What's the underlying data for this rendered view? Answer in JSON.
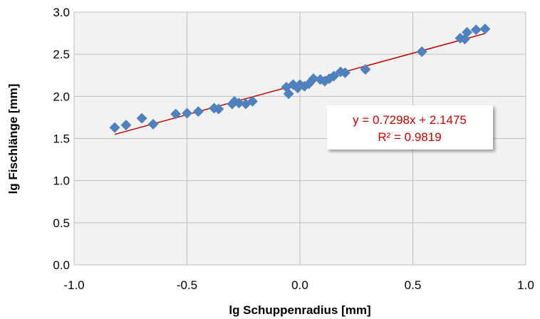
{
  "chart_data": {
    "type": "scatter",
    "title": "",
    "xlabel": "lg Schuppenradius [mm]",
    "ylabel": "lg Fischlänge [mm]",
    "xlim": [
      -1.0,
      1.0
    ],
    "ylim": [
      0.0,
      3.0
    ],
    "x_ticks": [
      "-1.0",
      "-0.5",
      "0.0",
      "0.5",
      "1.0"
    ],
    "y_ticks": [
      "0.0",
      "0.5",
      "1.0",
      "1.5",
      "2.0",
      "2.5",
      "3.0"
    ],
    "x_tick_values": [
      -1.0,
      -0.5,
      0.0,
      0.5,
      1.0
    ],
    "y_tick_values": [
      0.0,
      0.5,
      1.0,
      1.5,
      2.0,
      2.5,
      3.0
    ],
    "grid": true,
    "marker": "diamond",
    "colors": {
      "points": "#4f81bd",
      "trendline": "#c00000",
      "plot_background": "#f2f2f2",
      "grid": "#bfbfbf",
      "equation_text": "#c00000"
    },
    "series": [
      {
        "x": [
          -0.82,
          -0.77,
          -0.7,
          -0.65,
          -0.55,
          -0.5,
          -0.45,
          -0.38,
          -0.36,
          -0.3,
          -0.29,
          -0.27,
          -0.24,
          -0.21,
          -0.06,
          -0.05,
          -0.03,
          -0.01,
          0.0,
          0.02,
          0.04,
          0.06,
          0.09,
          0.11,
          0.13,
          0.15,
          0.18,
          0.2,
          0.29,
          0.54,
          0.71,
          0.73,
          0.74,
          0.78,
          0.82
        ],
        "y": [
          1.63,
          1.66,
          1.74,
          1.67,
          1.79,
          1.8,
          1.82,
          1.86,
          1.85,
          1.91,
          1.94,
          1.92,
          1.91,
          1.94,
          2.11,
          2.03,
          2.14,
          2.1,
          2.14,
          2.12,
          2.15,
          2.21,
          2.2,
          2.18,
          2.21,
          2.24,
          2.29,
          2.28,
          2.32,
          2.53,
          2.69,
          2.68,
          2.76,
          2.79,
          2.8
        ]
      }
    ],
    "trendline": {
      "type": "linear",
      "slope": 0.7298,
      "intercept": 2.1475,
      "x_range": [
        -0.82,
        0.82
      ],
      "equation_label": "y = 0.7298x + 2.1475",
      "r2_label": "R² = 0.9819"
    }
  }
}
